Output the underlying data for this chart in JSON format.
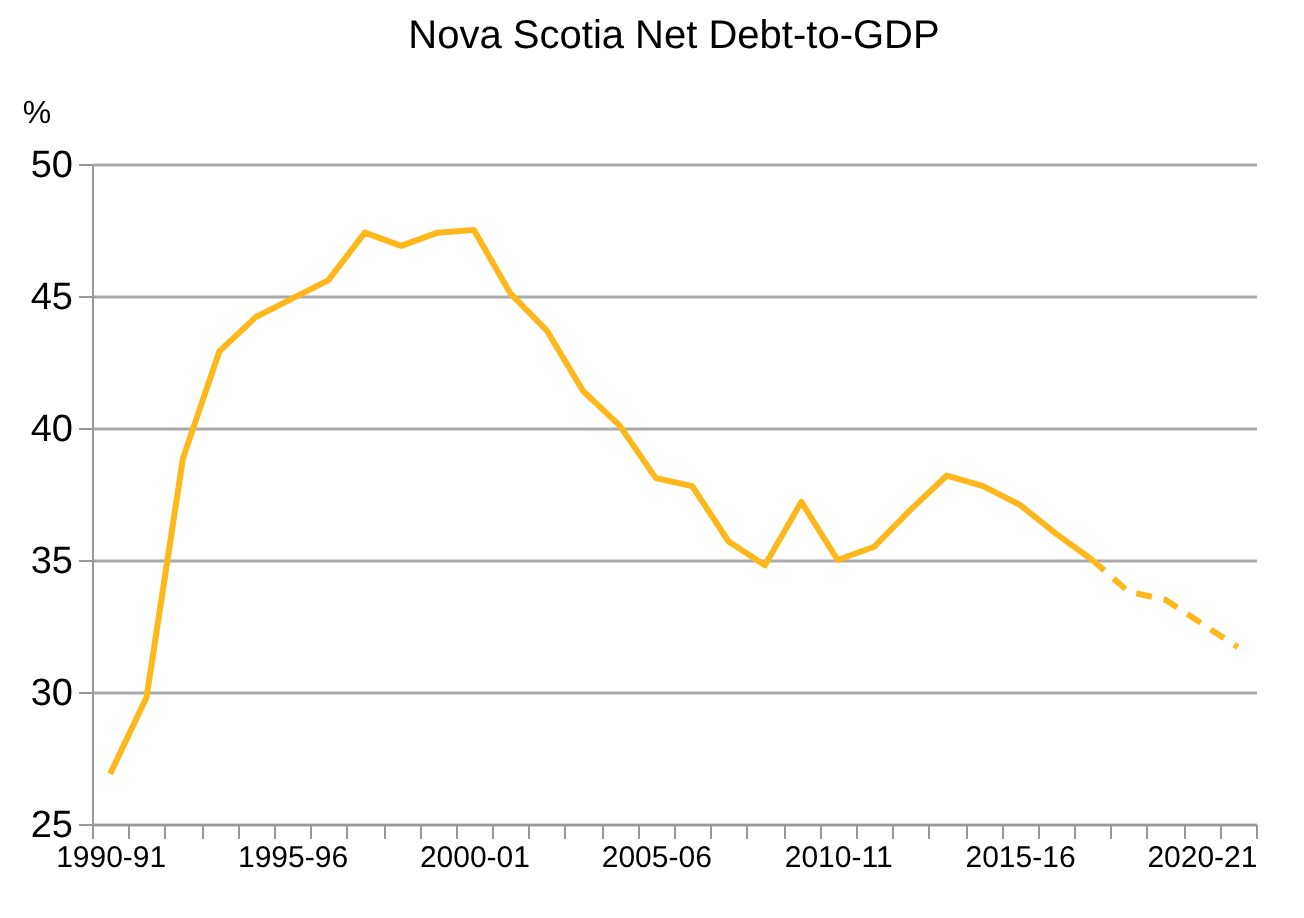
{
  "chart_data": {
    "type": "line",
    "title": "Nova Scotia Net Debt-to-GDP",
    "ylabel": "%",
    "categories": [
      "1990-91",
      null,
      null,
      null,
      null,
      "1995-96",
      null,
      null,
      null,
      null,
      "2000-01",
      null,
      null,
      null,
      null,
      "2005-06",
      null,
      null,
      null,
      null,
      "2010-11",
      null,
      null,
      null,
      null,
      "2015-16",
      null,
      null,
      null,
      null,
      "2020-21",
      null
    ],
    "series": [
      {
        "color": "#ffb81c",
        "line_style": "solid",
        "values": [
          26.9,
          29.8,
          38.85,
          42.9,
          44.2,
          44.9,
          45.6,
          47.4,
          46.9,
          47.4,
          47.5,
          45.1,
          43.7,
          41.4,
          40.1,
          38.1,
          37.8,
          35.7,
          34.8,
          37.2,
          35.0,
          35.5,
          36.9,
          38.2,
          37.8,
          37.1,
          36.0,
          35.0,
          null,
          null,
          null,
          null
        ]
      },
      {
        "color": "#ffb81c",
        "line_style": "dashed",
        "values": [
          null,
          null,
          null,
          null,
          null,
          null,
          null,
          null,
          null,
          null,
          null,
          null,
          null,
          null,
          null,
          null,
          null,
          null,
          null,
          null,
          null,
          null,
          null,
          null,
          null,
          null,
          null,
          35.0,
          33.8,
          33.5,
          32.6,
          31.7
        ]
      }
    ],
    "ylim": [
      25,
      50
    ],
    "yticks": [
      25,
      30,
      35,
      40,
      45,
      50
    ],
    "grid": "y",
    "marker": "none"
  }
}
